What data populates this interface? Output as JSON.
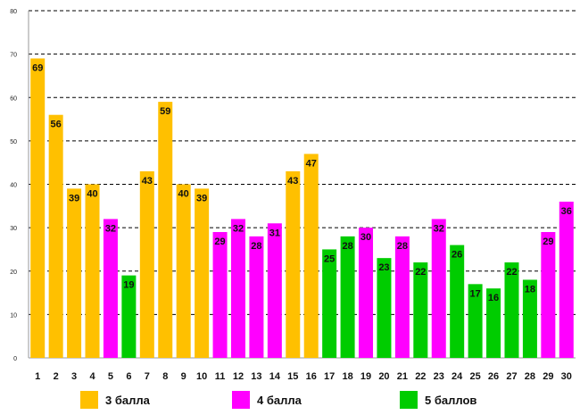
{
  "chart_data": {
    "type": "bar",
    "title": "",
    "xlabel": "",
    "ylabel": "",
    "ylim": [
      0,
      80
    ],
    "yticks": [
      0,
      10,
      20,
      30,
      40,
      50,
      60,
      70,
      80
    ],
    "grid": true,
    "legend_position": "bottom",
    "categories": [
      "1",
      "2",
      "3",
      "4",
      "5",
      "6",
      "7",
      "8",
      "9",
      "10",
      "11",
      "12",
      "13",
      "14",
      "15",
      "16",
      "17",
      "18",
      "19",
      "20",
      "21",
      "22",
      "23",
      "24",
      "25",
      "26",
      "27",
      "28",
      "29",
      "30"
    ],
    "values": [
      69,
      56,
      39,
      40,
      32,
      19,
      43,
      59,
      40,
      39,
      29,
      32,
      28,
      31,
      43,
      47,
      25,
      28,
      30,
      23,
      28,
      22,
      32,
      26,
      17,
      16,
      22,
      18,
      29,
      36
    ],
    "groups": [
      "g3",
      "g3",
      "g3",
      "g3",
      "g4",
      "g5",
      "g3",
      "g3",
      "g3",
      "g3",
      "g4",
      "g4",
      "g4",
      "g4",
      "g3",
      "g3",
      "g5",
      "g5",
      "g4",
      "g5",
      "g4",
      "g5",
      "g4",
      "g5",
      "g5",
      "g5",
      "g5",
      "g5",
      "g4",
      "g4"
    ],
    "series": [
      {
        "key": "g3",
        "name": "3 балла",
        "color": "#FFC000"
      },
      {
        "key": "g4",
        "name": "4 балла",
        "color": "#FF00FF"
      },
      {
        "key": "g5",
        "name": "5 баллов",
        "color": "#00CC00"
      }
    ]
  }
}
